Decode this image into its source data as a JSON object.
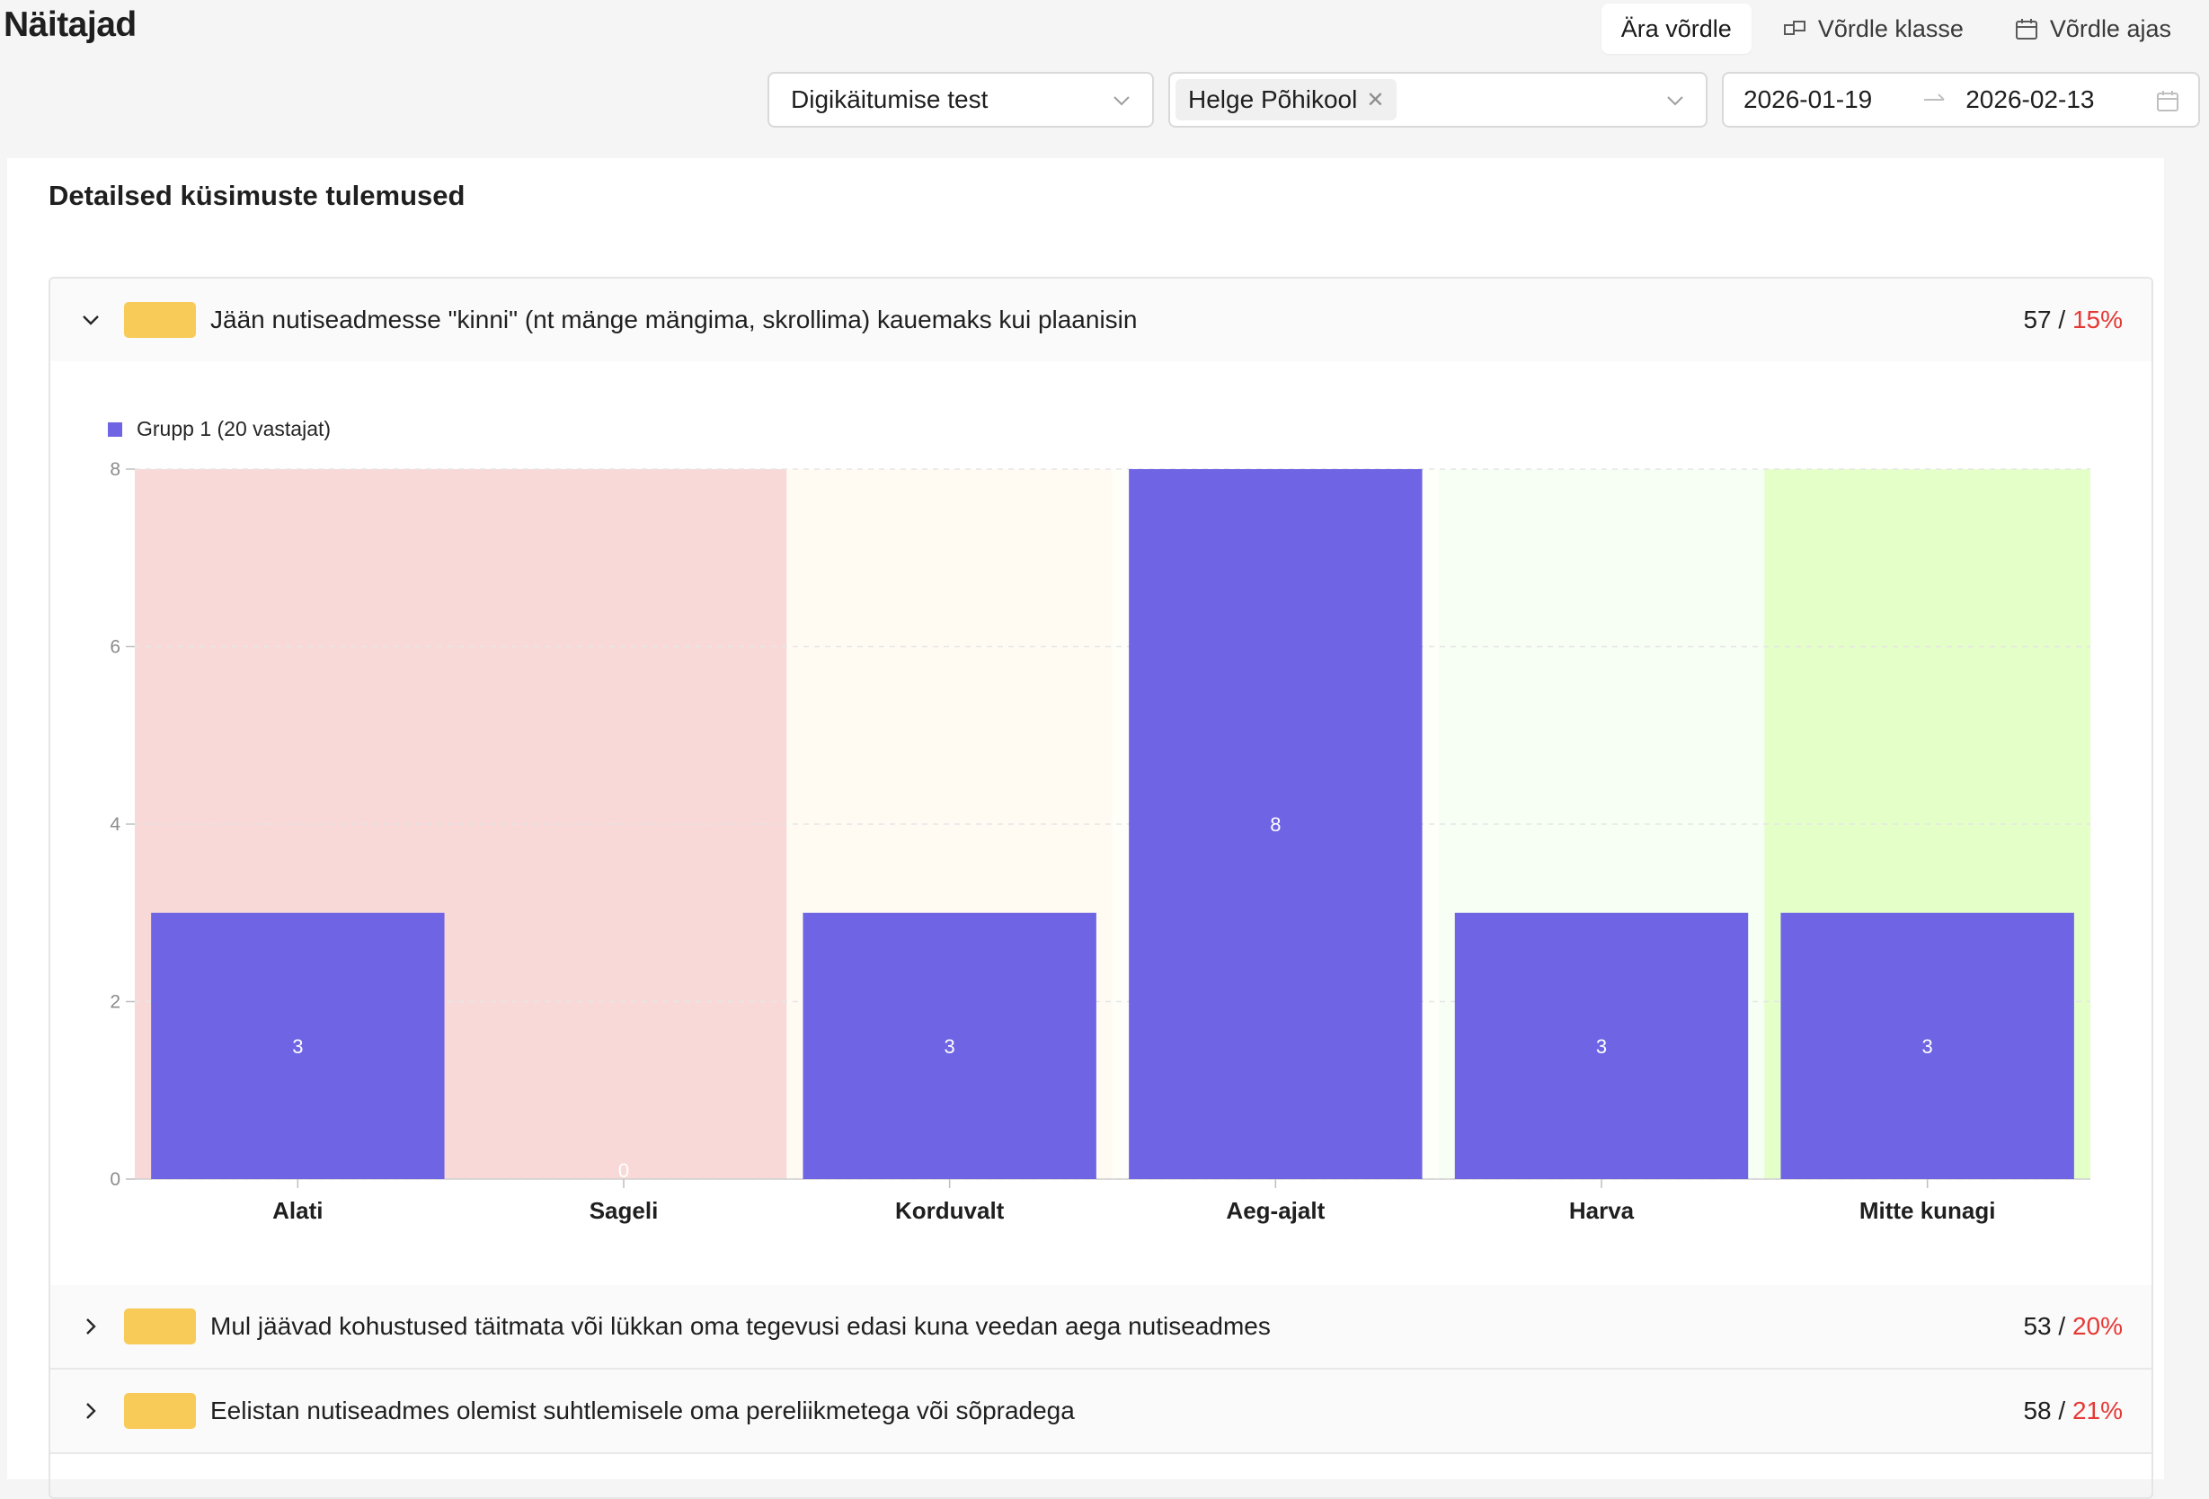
{
  "header": {
    "title": "Näitajad",
    "actions": [
      {
        "label": "Ära võrdle",
        "icon": "none",
        "active": true
      },
      {
        "label": "Võrdle klasse",
        "icon": "compare-classes-icon",
        "active": false
      },
      {
        "label": "Võrdle ajas",
        "icon": "calendar-icon",
        "active": false
      }
    ]
  },
  "filters": {
    "test_select": "Digikäitumise test",
    "school_tag": "Helge Põhikool",
    "date_start": "2026-01-19",
    "date_end": "2026-02-13"
  },
  "card": {
    "title": "Detailsed küsimuste tulemused"
  },
  "questions": [
    {
      "text": "Jään nutiseadmesse \"kinni\" (nt mänge mängima, skrollima) kauemaks kui plaanisin",
      "score": "57",
      "pct": "15%",
      "expanded": true
    },
    {
      "text": "Mul jäävad kohustused täitmata või lükkan oma tegevusi edasi kuna veedan aega nutiseadmes",
      "score": "53",
      "pct": "20%",
      "expanded": false
    },
    {
      "text": "Eelistan nutiseadmes olemist suhtlemisele oma pereliikmetega või sõpradega",
      "score": "58",
      "pct": "21%",
      "expanded": false
    }
  ],
  "chart_data": {
    "type": "bar",
    "categories": [
      "Alati",
      "Sageli",
      "Korduvalt",
      "Aeg-ajalt",
      "Harva",
      "Mitte kunagi"
    ],
    "series": [
      {
        "name": "Grupp 1 (20 vastajat)",
        "values": [
          3,
          0,
          3,
          8,
          3,
          3
        ],
        "color": "#6f64e3"
      }
    ],
    "ylim": [
      0,
      8
    ],
    "yticks": [
      0,
      2,
      4,
      6,
      8
    ],
    "background_bands": [
      {
        "categories": [
          "Alati",
          "Sageli"
        ],
        "color": "#f8d9d7"
      },
      {
        "categories": [
          "Korduvalt"
        ],
        "color": "#fffbf3"
      },
      {
        "categories": [
          "Aeg-ajalt"
        ],
        "color": "#fefff9"
      },
      {
        "categories": [
          "Harva"
        ],
        "color": "#f7fff4"
      },
      {
        "categories": [
          "Mitte kunagi"
        ],
        "color": "#e4ffc8"
      }
    ],
    "legend": "top-left",
    "grid": "horizontal dashed"
  }
}
